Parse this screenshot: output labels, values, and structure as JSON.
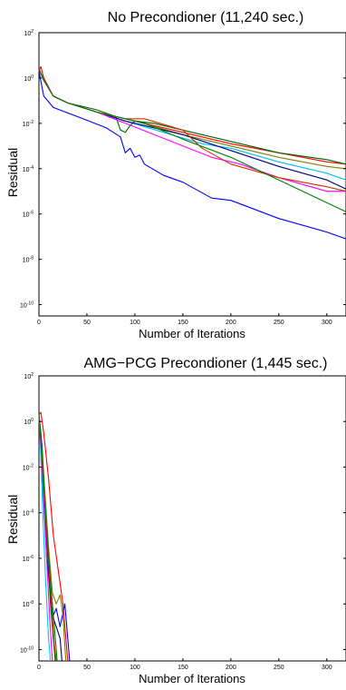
{
  "chart_data": [
    {
      "type": "line",
      "title": "No Precondioner (11,240 sec.)",
      "xlabel": "Number of Iterations",
      "ylabel": "Residual",
      "xlim": [
        0,
        320
      ],
      "ylim_exp": [
        -10.5,
        2
      ],
      "y_scale": "log",
      "xticks": [
        "0",
        "50",
        "100",
        "150",
        "200",
        "250",
        "300"
      ],
      "yticks": [
        {
          "base": "10",
          "exp": "2"
        },
        {
          "base": "10",
          "exp": "0"
        },
        {
          "base": "10",
          "exp": "-2"
        },
        {
          "base": "10",
          "exp": "-4"
        },
        {
          "base": "10",
          "exp": "-6"
        },
        {
          "base": "10",
          "exp": "-8"
        },
        {
          "base": "10",
          "exp": "-10"
        }
      ],
      "grid": false,
      "series": [
        {
          "color": "#0000ff",
          "points": [
            [
              0,
              0.3
            ],
            [
              5,
              -0.8
            ],
            [
              15,
              -1.3
            ],
            [
              40,
              -1.7
            ],
            [
              70,
              -2.2
            ],
            [
              85,
              -2.6
            ],
            [
              90,
              -3.3
            ],
            [
              95,
              -3.1
            ],
            [
              100,
              -3.5
            ],
            [
              105,
              -3.4
            ],
            [
              110,
              -3.8
            ],
            [
              130,
              -4.3
            ],
            [
              150,
              -4.6
            ],
            [
              180,
              -5.3
            ],
            [
              200,
              -5.4
            ],
            [
              250,
              -6.2
            ],
            [
              300,
              -6.8
            ],
            [
              320,
              -7.1
            ]
          ]
        },
        {
          "color": "#ff0000",
          "points": [
            [
              0,
              0.3
            ],
            [
              2,
              0.5
            ],
            [
              5,
              0.0
            ],
            [
              15,
              -0.8
            ],
            [
              30,
              -1.1
            ],
            [
              60,
              -1.5
            ],
            [
              90,
              -1.8
            ],
            [
              120,
              -2.1
            ],
            [
              160,
              -2.5
            ],
            [
              200,
              -2.9
            ],
            [
              250,
              -3.3
            ],
            [
              300,
              -3.7
            ],
            [
              320,
              -3.8
            ]
          ]
        },
        {
          "color": "#006400",
          "points": [
            [
              0,
              0.4
            ],
            [
              5,
              -0.1
            ],
            [
              15,
              -0.8
            ],
            [
              30,
              -1.1
            ],
            [
              60,
              -1.4
            ],
            [
              80,
              -1.7
            ],
            [
              85,
              -2.3
            ],
            [
              90,
              -2.4
            ],
            [
              95,
              -2.1
            ],
            [
              100,
              -1.9
            ],
            [
              120,
              -2.0
            ],
            [
              150,
              -2.3
            ],
            [
              200,
              -2.8
            ],
            [
              250,
              -3.3
            ],
            [
              300,
              -3.6
            ],
            [
              320,
              -3.8
            ]
          ]
        },
        {
          "color": "#808000",
          "points": [
            [
              0,
              0.4
            ],
            [
              5,
              -0.1
            ],
            [
              15,
              -0.8
            ],
            [
              30,
              -1.1
            ],
            [
              60,
              -1.5
            ],
            [
              90,
              -1.8
            ],
            [
              100,
              -1.9
            ],
            [
              150,
              -2.5
            ],
            [
              200,
              -3.0
            ],
            [
              250,
              -3.5
            ],
            [
              300,
              -3.9
            ],
            [
              320,
              -4.0
            ]
          ]
        },
        {
          "color": "#00bfff",
          "points": [
            [
              0,
              0.4
            ],
            [
              5,
              -0.1
            ],
            [
              15,
              -0.8
            ],
            [
              30,
              -1.1
            ],
            [
              60,
              -1.5
            ],
            [
              90,
              -1.9
            ],
            [
              130,
              -2.4
            ],
            [
              170,
              -2.9
            ],
            [
              200,
              -3.1
            ],
            [
              250,
              -3.7
            ],
            [
              300,
              -4.2
            ],
            [
              320,
              -4.5
            ]
          ]
        },
        {
          "color": "#000080",
          "points": [
            [
              0,
              0.4
            ],
            [
              5,
              -0.1
            ],
            [
              15,
              -0.8
            ],
            [
              30,
              -1.1
            ],
            [
              60,
              -1.5
            ],
            [
              90,
              -1.9
            ],
            [
              100,
              -2.0
            ],
            [
              150,
              -2.5
            ],
            [
              200,
              -3.2
            ],
            [
              250,
              -3.9
            ],
            [
              300,
              -4.5
            ],
            [
              320,
              -4.9
            ]
          ]
        },
        {
          "color": "#ff00ff",
          "points": [
            [
              0,
              0.4
            ],
            [
              5,
              -0.1
            ],
            [
              15,
              -0.8
            ],
            [
              30,
              -1.1
            ],
            [
              60,
              -1.5
            ],
            [
              90,
              -2.0
            ],
            [
              120,
              -2.5
            ],
            [
              150,
              -3.0
            ],
            [
              180,
              -3.5
            ],
            [
              210,
              -3.8
            ],
            [
              250,
              -4.4
            ],
            [
              300,
              -5.0
            ],
            [
              320,
              -5.0
            ]
          ]
        },
        {
          "color": "#cc3300",
          "points": [
            [
              0,
              0.4
            ],
            [
              5,
              -0.1
            ],
            [
              15,
              -0.8
            ],
            [
              30,
              -1.1
            ],
            [
              60,
              -1.5
            ],
            [
              90,
              -1.8
            ],
            [
              110,
              -1.8
            ],
            [
              150,
              -2.3
            ],
            [
              170,
              -3.1
            ],
            [
              200,
              -3.8
            ],
            [
              250,
              -4.4
            ],
            [
              300,
              -4.8
            ],
            [
              320,
              -5.0
            ]
          ]
        },
        {
          "color": "#008000",
          "points": [
            [
              0,
              0.4
            ],
            [
              5,
              -0.1
            ],
            [
              15,
              -0.8
            ],
            [
              30,
              -1.1
            ],
            [
              60,
              -1.5
            ],
            [
              90,
              -1.8
            ],
            [
              110,
              -2.0
            ],
            [
              150,
              -2.7
            ],
            [
              200,
              -3.5
            ],
            [
              250,
              -4.5
            ],
            [
              300,
              -5.5
            ],
            [
              320,
              -5.9
            ]
          ]
        }
      ]
    },
    {
      "type": "line",
      "title": "AMG−PCG Precondioner (1,445 sec.)",
      "xlabel": "Number of Iterations",
      "ylabel": "Residual",
      "xlim": [
        0,
        320
      ],
      "ylim_exp": [
        -10.5,
        2
      ],
      "y_scale": "log",
      "xticks": [
        "0",
        "50",
        "100",
        "150",
        "200",
        "250",
        "300"
      ],
      "yticks": [
        {
          "base": "10",
          "exp": "2"
        },
        {
          "base": "10",
          "exp": "0"
        },
        {
          "base": "10",
          "exp": "-2"
        },
        {
          "base": "10",
          "exp": "-4"
        },
        {
          "base": "10",
          "exp": "-6"
        },
        {
          "base": "10",
          "exp": "-8"
        },
        {
          "base": "10",
          "exp": "-10"
        }
      ],
      "grid": false,
      "series": [
        {
          "color": "#ff0000",
          "points": [
            [
              0,
              0.3
            ],
            [
              2,
              0.4
            ],
            [
              5,
              -0.5
            ],
            [
              10,
              -2.5
            ],
            [
              15,
              -5.0
            ],
            [
              20,
              -6.5
            ],
            [
              25,
              -8.0
            ],
            [
              28,
              -9.5
            ],
            [
              30,
              -10.5
            ]
          ]
        },
        {
          "color": "#0000ff",
          "points": [
            [
              0,
              0.3
            ],
            [
              2,
              -1.0
            ],
            [
              5,
              -3.5
            ],
            [
              8,
              -6.0
            ],
            [
              12,
              -7.5
            ],
            [
              15,
              -8.5
            ],
            [
              18,
              -8.2
            ],
            [
              22,
              -9.0
            ],
            [
              27,
              -8.0
            ],
            [
              30,
              -9.5
            ],
            [
              32,
              -10.5
            ]
          ]
        },
        {
          "color": "#006400",
          "points": [
            [
              0,
              0.3
            ],
            [
              2,
              -0.5
            ],
            [
              4,
              -2.5
            ],
            [
              8,
              -5.0
            ],
            [
              12,
              -8.0
            ],
            [
              15,
              -9.5
            ],
            [
              17,
              -10.5
            ]
          ]
        },
        {
          "color": "#808000",
          "points": [
            [
              0,
              0.3
            ],
            [
              3,
              -1.0
            ],
            [
              6,
              -3.0
            ],
            [
              10,
              -5.5
            ],
            [
              14,
              -7.5
            ],
            [
              18,
              -8.0
            ],
            [
              22,
              -7.6
            ],
            [
              25,
              -8.5
            ],
            [
              28,
              -10.5
            ]
          ]
        },
        {
          "color": "#00bfff",
          "points": [
            [
              0,
              0.3
            ],
            [
              2,
              -1.5
            ],
            [
              4,
              -4.0
            ],
            [
              7,
              -7.0
            ],
            [
              10,
              -9.5
            ],
            [
              12,
              -10.5
            ]
          ]
        },
        {
          "color": "#000080",
          "points": [
            [
              0,
              0.3
            ],
            [
              3,
              -1.0
            ],
            [
              6,
              -3.5
            ],
            [
              10,
              -6.5
            ],
            [
              14,
              -8.5
            ],
            [
              18,
              -9.0
            ],
            [
              22,
              -9.5
            ],
            [
              24,
              -10.5
            ]
          ]
        },
        {
          "color": "#ff00ff",
          "points": [
            [
              0,
              0.3
            ],
            [
              2,
              -1.0
            ],
            [
              5,
              -3.0
            ],
            [
              8,
              -6.0
            ],
            [
              11,
              -8.5
            ],
            [
              14,
              -10.5
            ]
          ]
        },
        {
          "color": "#cc3300",
          "points": [
            [
              0,
              0.3
            ],
            [
              2,
              -0.8
            ],
            [
              5,
              -2.8
            ],
            [
              9,
              -5.5
            ],
            [
              13,
              -8.0
            ],
            [
              16,
              -9.8
            ],
            [
              18,
              -10.5
            ]
          ]
        },
        {
          "color": "#008000",
          "points": [
            [
              0,
              0.3
            ],
            [
              3,
              -1.2
            ],
            [
              7,
              -4.0
            ],
            [
              12,
              -7.0
            ],
            [
              16,
              -9.0
            ],
            [
              19,
              -10.5
            ]
          ]
        }
      ]
    }
  ]
}
